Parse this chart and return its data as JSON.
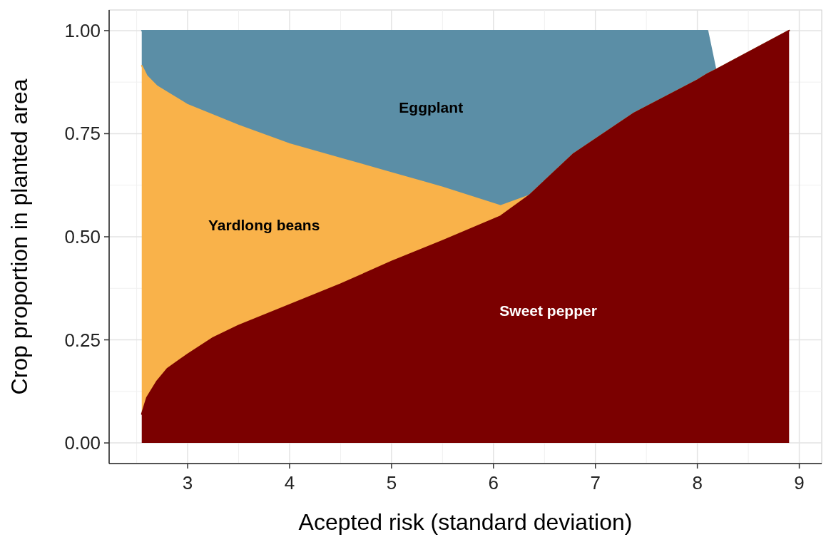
{
  "chart_data": {
    "type": "area",
    "stacked": true,
    "xlabel": "Acepted risk (standard deviation)",
    "ylabel": "Crop proportion in planted area",
    "x": [
      2.55,
      2.6,
      2.7,
      2.8,
      3,
      3.25,
      3.5,
      4,
      4.5,
      5,
      5.5,
      6.07,
      6.35,
      6.78,
      7.38,
      8,
      8.1,
      8.18,
      8.9
    ],
    "series": [
      {
        "name": "Sweet pepper",
        "color": "#7b0000",
        "values": [
          0.07,
          0.11,
          0.15,
          0.18,
          0.215,
          0.255,
          0.285,
          0.335,
          0.385,
          0.44,
          0.49,
          0.55,
          0.6,
          0.7,
          0.8,
          0.88,
          0.895,
          0.905,
          1.0
        ]
      },
      {
        "name": "Yardlong beans",
        "color": "#f9b24a",
        "values": [
          0.845,
          0.78,
          0.715,
          0.67,
          0.605,
          0.54,
          0.485,
          0.39,
          0.305,
          0.215,
          0.13,
          0.025,
          0,
          0,
          0,
          0,
          0,
          0,
          0
        ]
      },
      {
        "name": "Eggplant",
        "color": "#5b8ea6",
        "values": [
          0.085,
          0.11,
          0.135,
          0.15,
          0.18,
          0.205,
          0.23,
          0.275,
          0.31,
          0.345,
          0.38,
          0.425,
          0.4,
          0.3,
          0.2,
          0.12,
          0.105,
          0,
          0
        ]
      }
    ],
    "xlim": [
      2.23,
      9.22
    ],
    "xticks": [
      3,
      4,
      5,
      6,
      7,
      8,
      9
    ],
    "ylim": [
      -0.05,
      1.05
    ],
    "yticks": [
      {
        "value": 0,
        "label": "0.00"
      },
      {
        "value": 0.25,
        "label": "0.25"
      },
      {
        "value": 0.5,
        "label": "0.50"
      },
      {
        "value": 0.75,
        "label": "0.75"
      },
      {
        "value": 1,
        "label": "1.00"
      }
    ],
    "grid": true
  }
}
